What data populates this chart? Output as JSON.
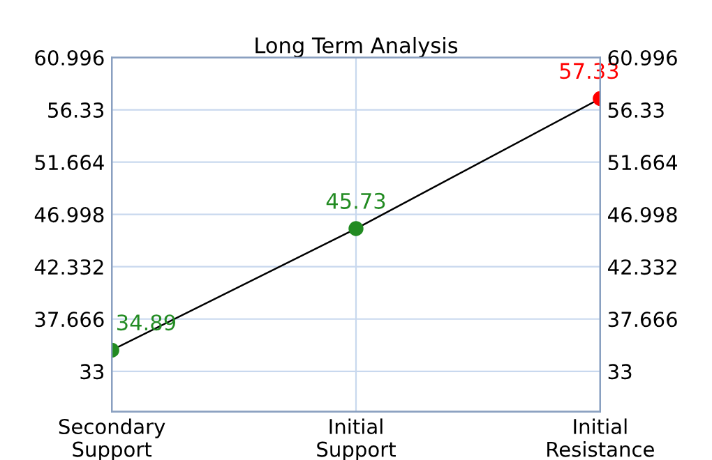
{
  "chart_data": {
    "type": "line",
    "title": "Long Term Analysis",
    "categories": [
      "Secondary\nSupport",
      "Initial\nSupport",
      "Initial\nResistance"
    ],
    "series": [
      {
        "color": "#000000",
        "colors": [
          "#228b22",
          "#228b22",
          "#ff0000"
        ],
        "values": [
          34.89,
          45.73,
          57.33
        ]
      }
    ],
    "data_labels": true,
    "marker": "circle",
    "grid": true,
    "ylim": [
      29.4,
      60.996
    ],
    "yticks": [
      33,
      37.666,
      42.332,
      46.998,
      51.664,
      56.33,
      60.996
    ],
    "y2lim": [
      29.4,
      60.996
    ],
    "y2ticks": [
      33,
      37.666,
      42.332,
      46.998,
      51.664,
      56.33,
      60.996
    ]
  }
}
